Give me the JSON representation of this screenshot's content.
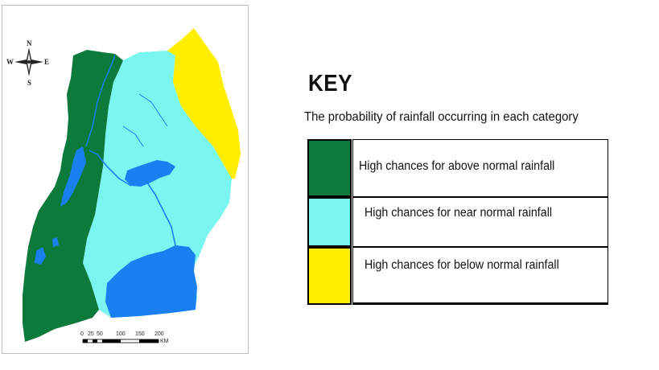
{
  "map": {
    "compass": {
      "north": "N",
      "south": "S",
      "east": "E",
      "west": "W"
    },
    "scale_bar": {
      "ticks": [
        "0",
        "25",
        "50",
        "100",
        "150",
        "200"
      ],
      "unit": "KM"
    }
  },
  "key": {
    "title": "KEY",
    "subtitle": "The probability of rainfall occurring in each category",
    "items": [
      {
        "color": "#0b7a3a",
        "label": "High chances for above normal rainfall"
      },
      {
        "color": "#7af5f0",
        "label": "High chances for near normal rainfall"
      },
      {
        "color": "#ffee00",
        "label": "High chances for below normal rainfall"
      }
    ]
  },
  "colors": {
    "water": "#1a7ff0",
    "above_normal": "#0b7a3a",
    "near_normal": "#7af5f0",
    "below_normal": "#ffee00"
  }
}
